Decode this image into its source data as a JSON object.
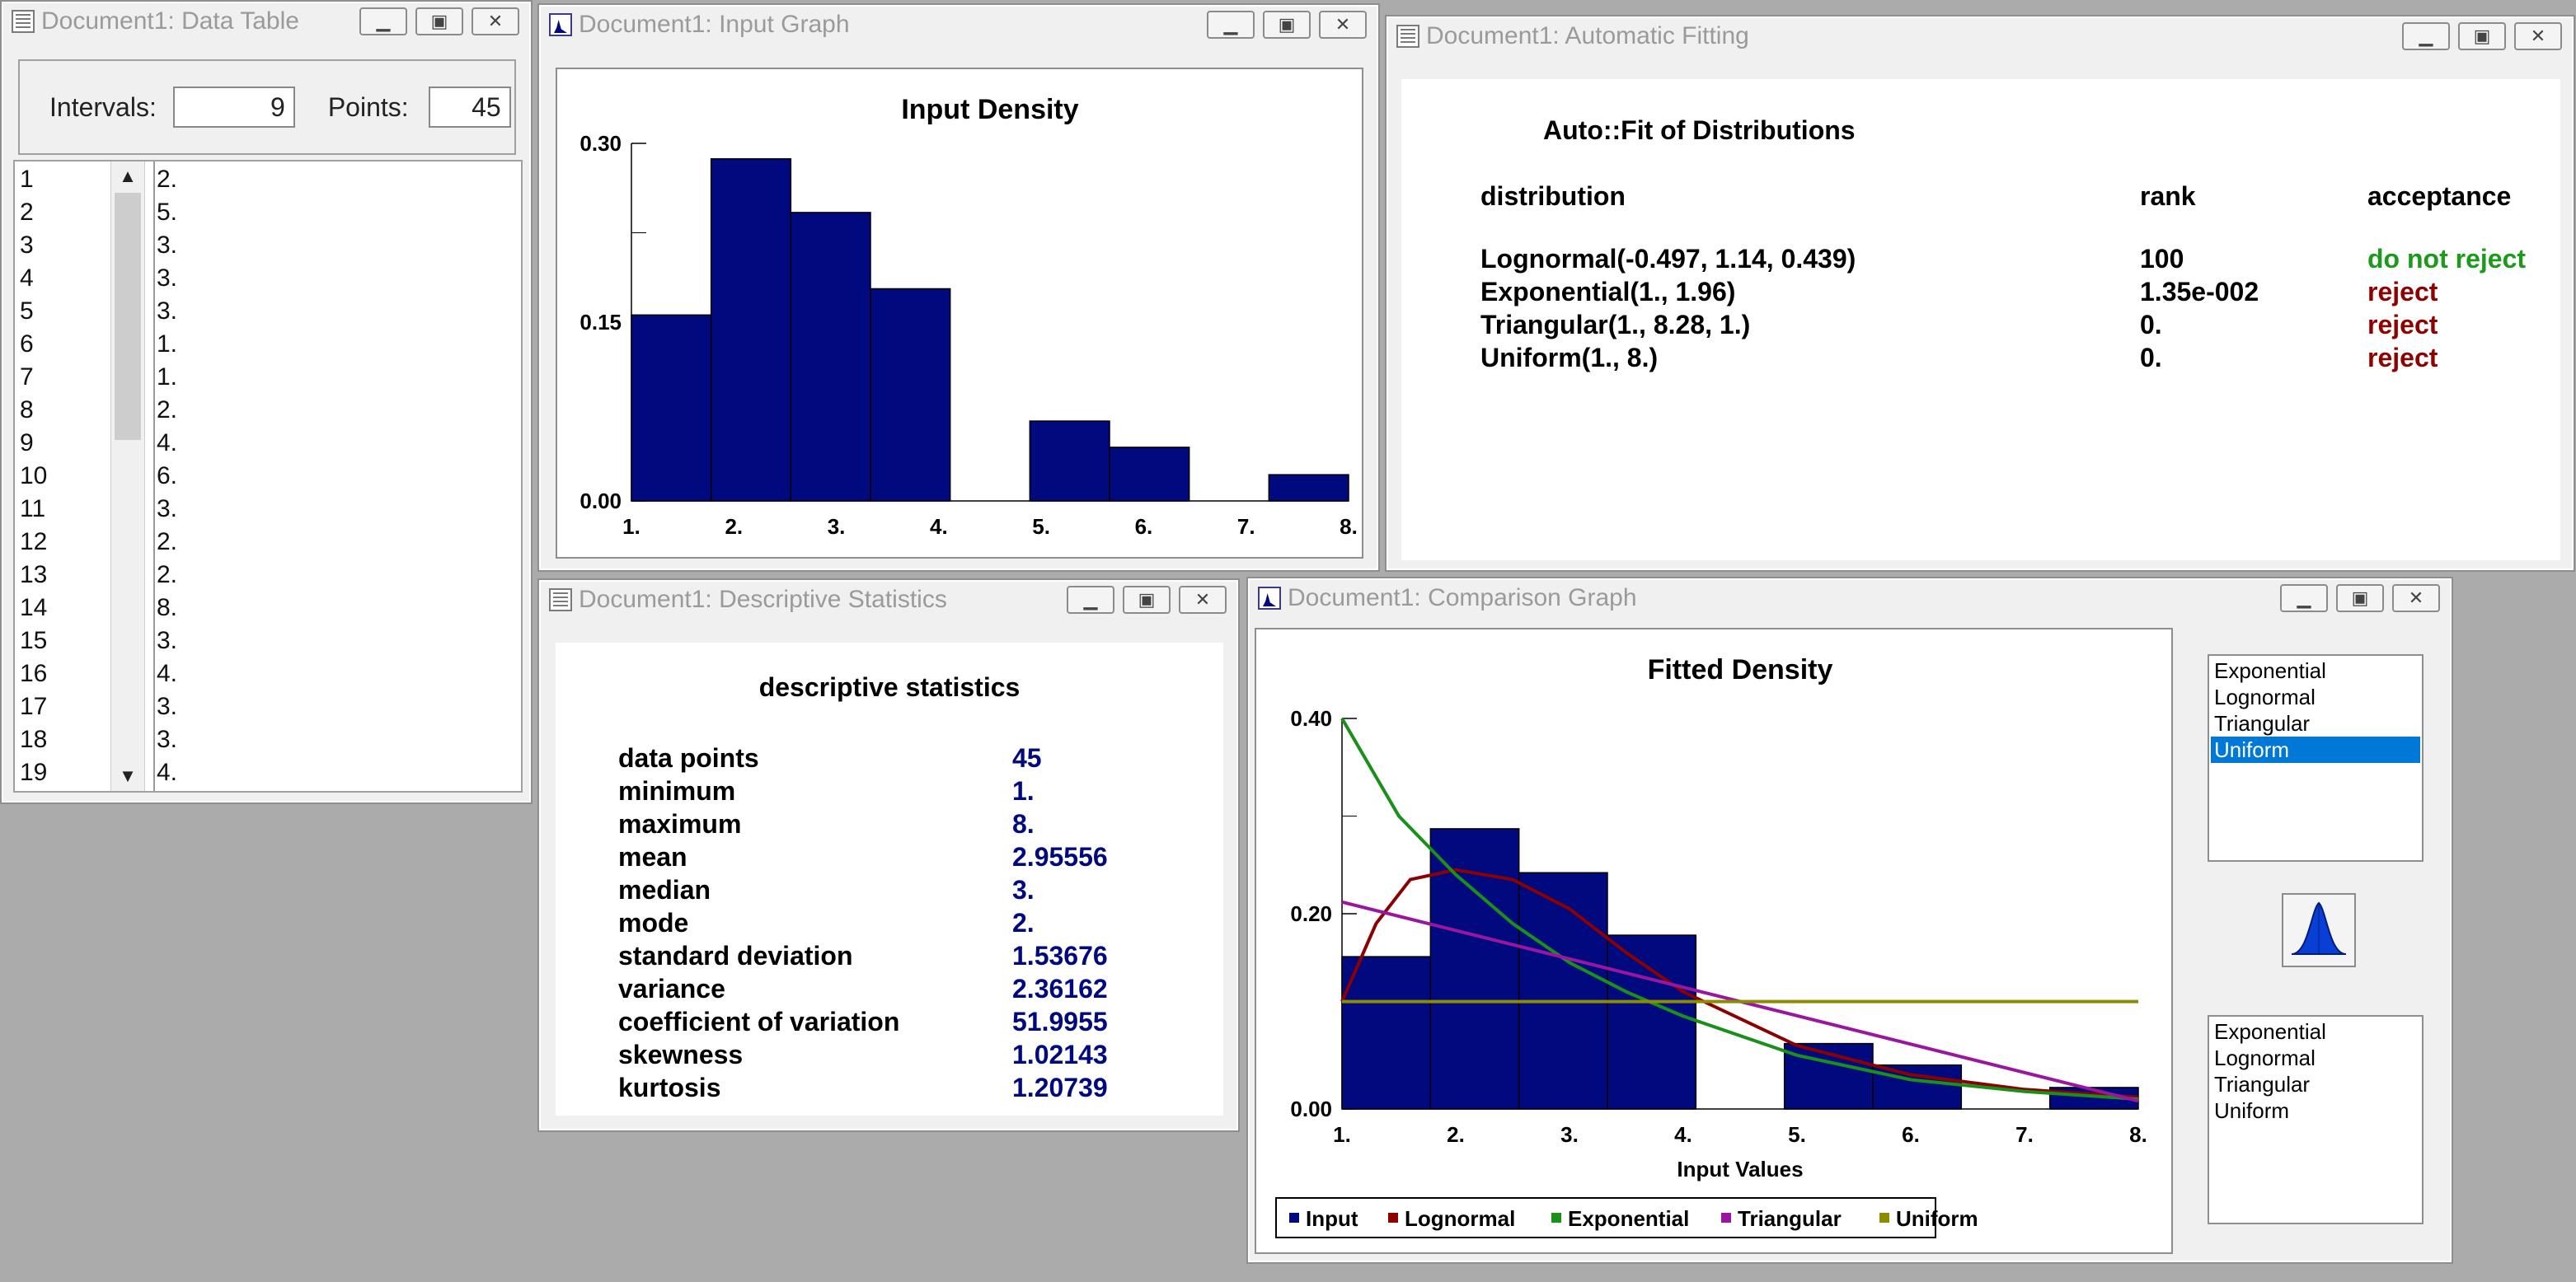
{
  "data_table": {
    "title": "Document1: Data Table",
    "intervals_label": "Intervals:",
    "intervals_value": "9",
    "points_label": "Points:",
    "points_value": "45",
    "rows": [
      "1",
      "2",
      "3",
      "4",
      "5",
      "6",
      "7",
      "8",
      "9",
      "10",
      "11",
      "12",
      "13",
      "14",
      "15",
      "16",
      "17",
      "18",
      "19"
    ],
    "values": [
      "2.",
      "5.",
      "3.",
      "3.",
      "3.",
      "1.",
      "1.",
      "2.",
      "4.",
      "6.",
      "3.",
      "2.",
      "2.",
      "8.",
      "3.",
      "4.",
      "3.",
      "3.",
      "4."
    ]
  },
  "input_graph": {
    "title": "Document1: Input Graph",
    "chart_title": "Input Density"
  },
  "auto_fit": {
    "title": "Document1: Automatic Fitting",
    "heading": "Auto::Fit of Distributions",
    "col_distribution": "distribution",
    "col_rank": "rank",
    "col_acceptance": "acceptance",
    "rows": [
      {
        "dist": "Lognormal(-0.497, 1.14, 0.439)",
        "rank": "100",
        "acc": "do not reject",
        "status": "green"
      },
      {
        "dist": "Exponential(1., 1.96)",
        "rank": "1.35e-002",
        "acc": "reject",
        "status": "red"
      },
      {
        "dist": "Triangular(1., 8.28, 1.)",
        "rank": "0.",
        "acc": "reject",
        "status": "red"
      },
      {
        "dist": "Uniform(1., 8.)",
        "rank": "0.",
        "acc": "reject",
        "status": "red"
      }
    ]
  },
  "desc_stats": {
    "title": "Document1: Descriptive Statistics",
    "heading": "descriptive statistics",
    "rows": [
      {
        "label": "data points",
        "value": "45"
      },
      {
        "label": "minimum",
        "value": "1."
      },
      {
        "label": "maximum",
        "value": "8."
      },
      {
        "label": "mean",
        "value": "2.95556"
      },
      {
        "label": "median",
        "value": "3."
      },
      {
        "label": "mode",
        "value": "2."
      },
      {
        "label": "standard deviation",
        "value": "1.53676"
      },
      {
        "label": "variance",
        "value": "2.36162"
      },
      {
        "label": "coefficient of variation",
        "value": "51.9955"
      },
      {
        "label": "skewness",
        "value": "1.02143"
      },
      {
        "label": "kurtosis",
        "value": "1.20739"
      }
    ]
  },
  "comparison": {
    "title": "Document1: Comparison Graph",
    "chart_title": "Fitted Density",
    "list_top": [
      "Exponential",
      "Lognormal",
      "Triangular",
      "Uniform"
    ],
    "list_top_selected": "Uniform",
    "list_bottom": [
      "Exponential",
      "Lognormal",
      "Triangular",
      "Uniform"
    ],
    "legend": [
      "Input",
      "Lognormal",
      "Exponential",
      "Triangular",
      "Uniform"
    ]
  },
  "colors": {
    "bar": "#000a7e",
    "lognormal": "#8b0000",
    "exponential": "#1a8f1a",
    "triangular": "#9a16a0",
    "uniform": "#8c8c00",
    "selection": "#0078d7"
  },
  "icons": {
    "minimize": "minimize-icon",
    "maximize": "maximize-icon",
    "close": "close-icon"
  },
  "chart_data": [
    {
      "type": "bar",
      "title": "Input Density",
      "xlabel": "",
      "ylabel": "",
      "bin_edges": [
        1.0,
        1.7778,
        2.5556,
        3.3333,
        4.1111,
        4.8889,
        5.6667,
        6.4444,
        7.2222,
        8.0
      ],
      "values": [
        0.156,
        0.287,
        0.242,
        0.178,
        0.0,
        0.067,
        0.045,
        0.0,
        0.022
      ],
      "xlim": [
        1,
        8
      ],
      "ylim": [
        0,
        0.3
      ],
      "yticks": [
        "0.00",
        "0.15",
        "0.30"
      ],
      "xticks": [
        "1.",
        "2.",
        "3.",
        "4.",
        "5.",
        "6.",
        "7.",
        "8."
      ],
      "grid": false
    },
    {
      "type": "line",
      "title": "Fitted Density",
      "xlabel": "Input Values",
      "ylabel": "",
      "xlim": [
        1,
        8
      ],
      "ylim": [
        0,
        0.4
      ],
      "yticks": [
        "0.00",
        "0.20",
        "0.40"
      ],
      "xticks": [
        "1.",
        "2.",
        "3.",
        "4.",
        "5.",
        "6.",
        "7.",
        "8."
      ],
      "legend_position": "bottom-left",
      "grid": false,
      "histogram": {
        "name": "Input",
        "bin_edges": [
          1.0,
          1.7778,
          2.5556,
          3.3333,
          4.1111,
          4.8889,
          5.6667,
          6.4444,
          7.2222,
          8.0
        ],
        "values": [
          0.156,
          0.287,
          0.242,
          0.178,
          0.0,
          0.067,
          0.045,
          0.0,
          0.022
        ]
      },
      "series": [
        {
          "name": "Lognormal",
          "x": [
            1.0,
            1.3,
            1.6,
            2.0,
            2.5,
            3.0,
            3.5,
            4.0,
            5.0,
            6.0,
            7.0,
            8.0
          ],
          "values": [
            0.11,
            0.19,
            0.235,
            0.245,
            0.235,
            0.205,
            0.16,
            0.12,
            0.065,
            0.035,
            0.02,
            0.012
          ]
        },
        {
          "name": "Exponential",
          "x": [
            1.0,
            1.5,
            2.0,
            2.5,
            3.0,
            3.5,
            4.0,
            5.0,
            6.0,
            7.0,
            8.0
          ],
          "values": [
            0.4,
            0.3,
            0.24,
            0.19,
            0.15,
            0.12,
            0.095,
            0.055,
            0.03,
            0.018,
            0.01
          ]
        },
        {
          "name": "Triangular",
          "x": [
            1.0,
            8.28
          ],
          "values": [
            0.212,
            0.0
          ]
        },
        {
          "name": "Uniform",
          "x": [
            1.0,
            8.0
          ],
          "values": [
            0.11,
            0.11
          ]
        }
      ]
    }
  ]
}
